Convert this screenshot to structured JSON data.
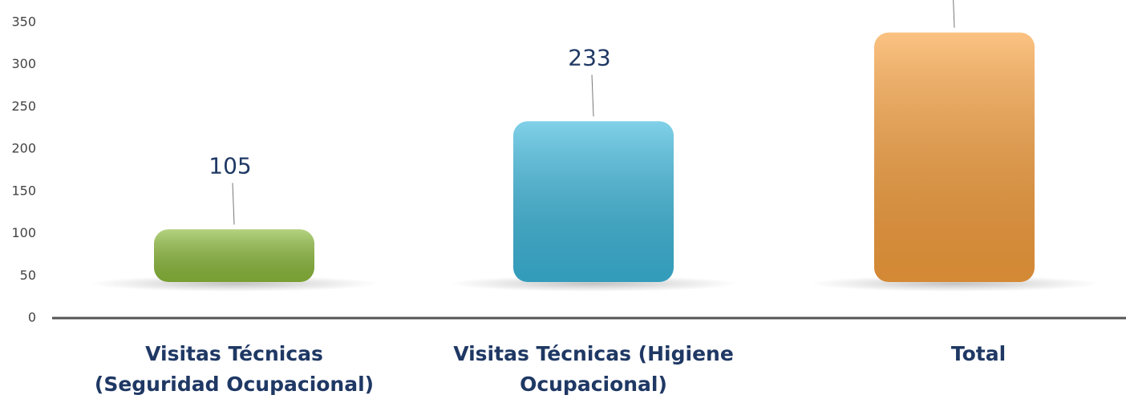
{
  "chart_data": {
    "type": "bar",
    "categories": [
      "Visitas Técnicas (Seguridad Ocupacional)",
      "Visitas Técnicas (Higiene Ocupacional)",
      "Total"
    ],
    "values": [
      105,
      233,
      338
    ],
    "colors": [
      "#8dbb3c",
      "#3cb8dc",
      "#f9a13e"
    ],
    "ylim": [
      0,
      350
    ],
    "yticks": [
      0,
      50,
      100,
      150,
      200,
      250,
      300,
      350
    ],
    "grid": false
  }
}
